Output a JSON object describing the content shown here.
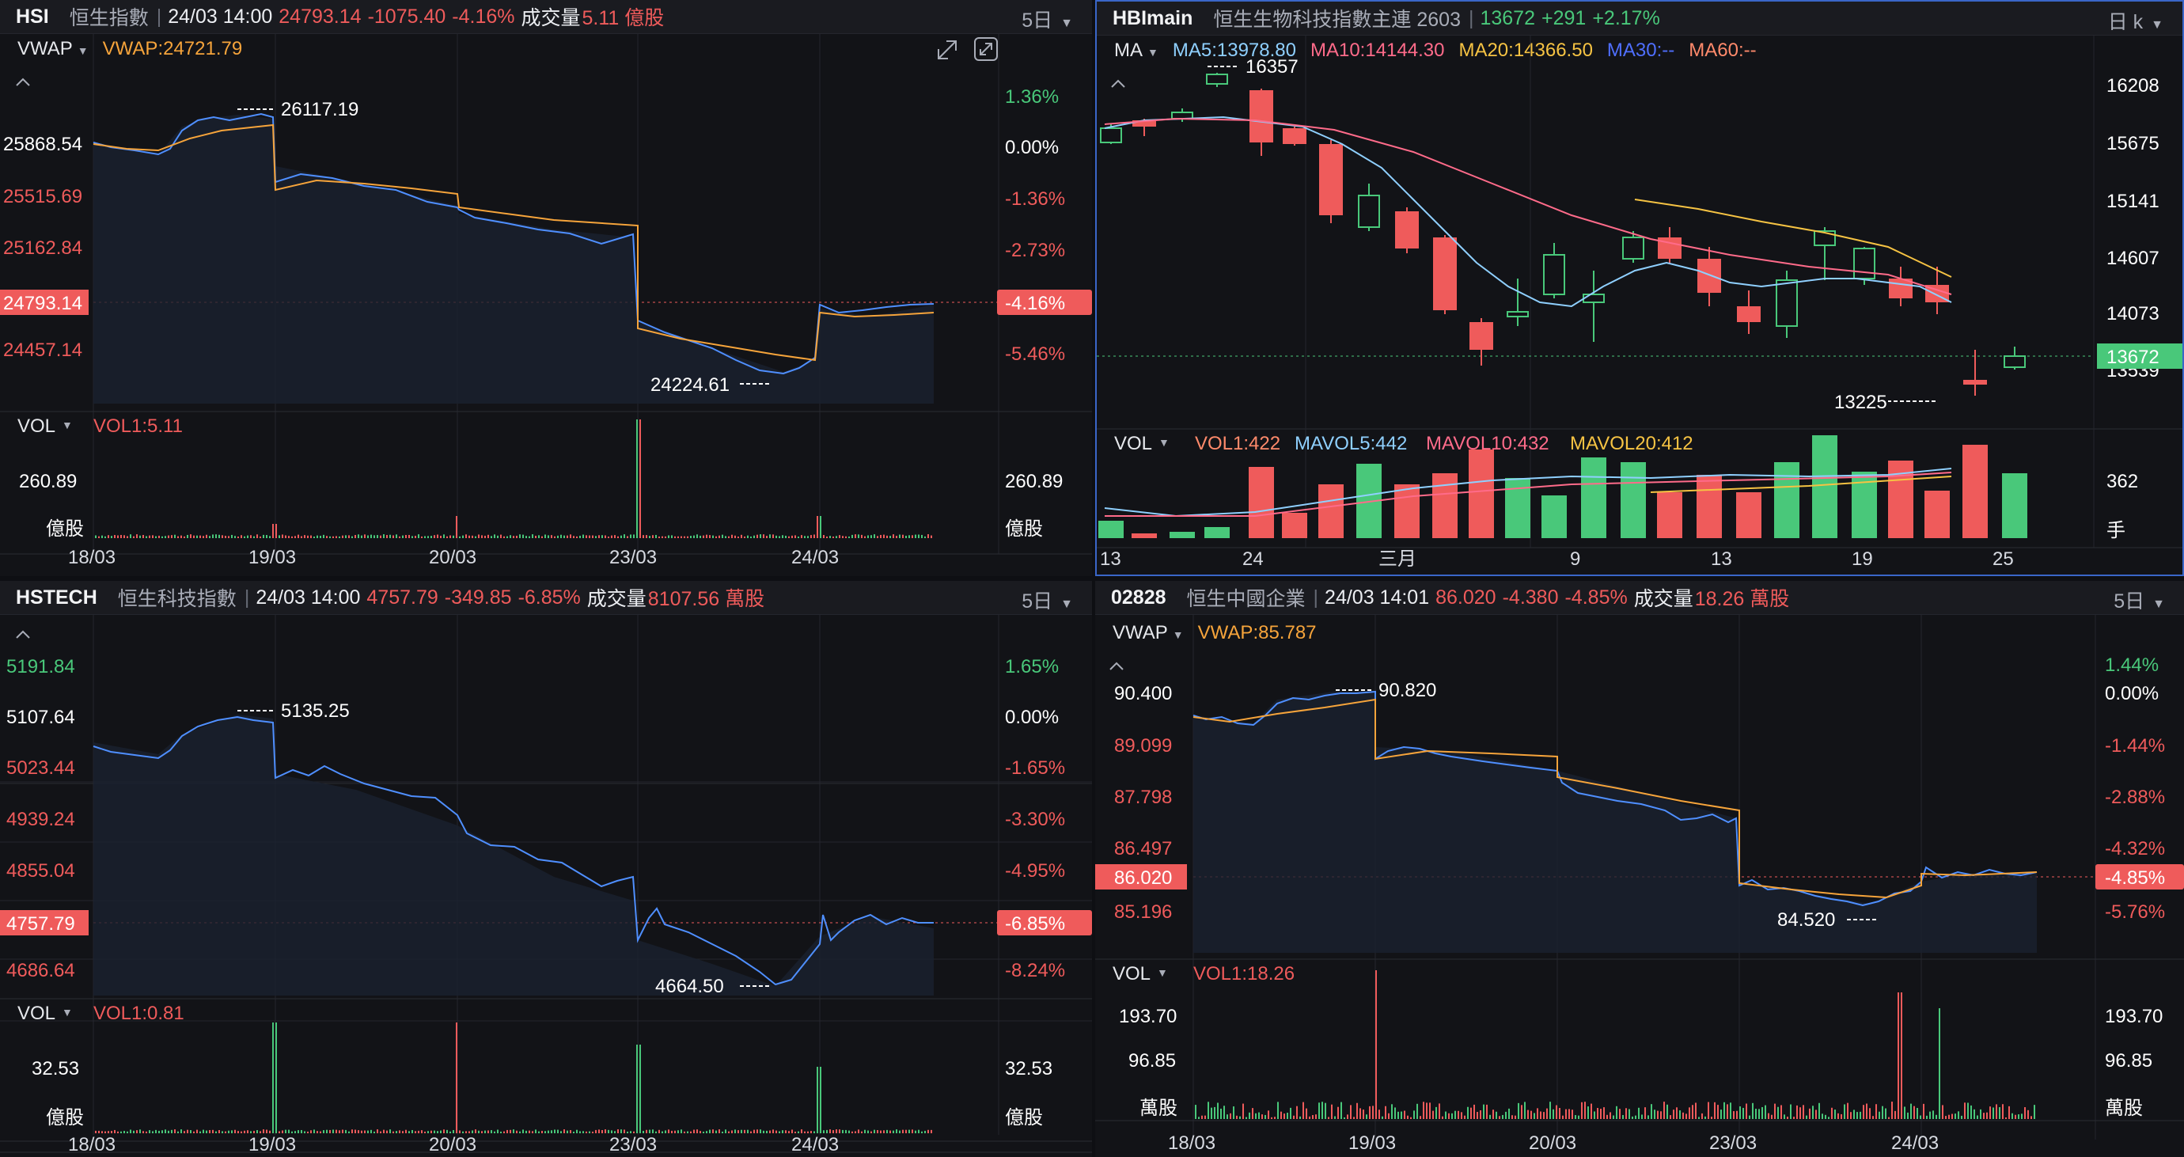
{
  "colors": {
    "up": "#49c87a",
    "down": "#ef5b5b",
    "vwap": "#f6a43b",
    "line": "#4f8fff",
    "bg": "#121317"
  },
  "panels": {
    "hsi": {
      "code": "HSI",
      "name": "恒生指數",
      "datetime": "24/03 14:00",
      "last": "24793.14",
      "change": "-1075.40",
      "pct": "-4.16%",
      "vol_label": "成交量",
      "vol_value": "5.11 億股",
      "period": "5日",
      "indicator": "VWAP",
      "indicator_value": "VWAP:24721.79",
      "high_label": "26117.19",
      "low_label": "24224.61",
      "left_axis": [
        "25868.54",
        "25515.69",
        "25162.84",
        "24793.14",
        "24457.14"
      ],
      "right_axis": [
        "1.36%",
        "0.00%",
        "-1.36%",
        "-2.73%",
        "-4.16%",
        "-5.46%"
      ],
      "vol_title": "VOL",
      "vol_ind": "VOL1:5.11",
      "vol_axis": "260.89",
      "vol_unit": "億股",
      "dates": [
        "18/03",
        "19/03",
        "20/03",
        "23/03",
        "24/03"
      ]
    },
    "hb": {
      "code": "HBImain",
      "name": "恒生生物科技指數主連 2603",
      "last": "13672",
      "change": "+291",
      "pct": "+2.17%",
      "period": "日 k",
      "indicator": "MA",
      "ma": [
        "MA5:13978.80",
        "MA10:14144.30",
        "MA20:14366.50",
        "MA30:--",
        "MA60:--"
      ],
      "high_label": "16357",
      "low_label": "13225",
      "right_axis": [
        "16208",
        "15675",
        "15141",
        "14607",
        "14073",
        "13539",
        "13672"
      ],
      "vol_title": "VOL",
      "vol_ind": [
        "VOL1:422",
        "MAVOL5:442",
        "MAVOL10:432",
        "MAVOL20:412"
      ],
      "vol_axis": "362",
      "vol_unit": "手",
      "dates": [
        "13",
        "24",
        "三月",
        "9",
        "13",
        "19",
        "25"
      ]
    },
    "hstech": {
      "code": "HSTECH",
      "name": "恒生科技指數",
      "datetime": "24/03 14:00",
      "last": "4757.79",
      "change": "-349.85",
      "pct": "-6.85%",
      "vol_label": "成交量",
      "vol_value": "8107.56 萬股",
      "period": "5日",
      "high_label": "5135.25",
      "low_label": "4664.50",
      "left_axis": [
        "5191.84",
        "5107.64",
        "5023.44",
        "4939.24",
        "4855.04",
        "4757.79",
        "4686.64"
      ],
      "right_axis": [
        "1.65%",
        "0.00%",
        "-1.65%",
        "-3.30%",
        "-4.95%",
        "-6.85%",
        "-8.24%"
      ],
      "vol_title": "VOL",
      "vol_ind": "VOL1:0.81",
      "vol_axis": "32.53",
      "vol_unit": "億股",
      "dates": [
        "18/03",
        "19/03",
        "20/03",
        "23/03",
        "24/03"
      ]
    },
    "hscei": {
      "code": "02828",
      "name": "恒生中國企業",
      "datetime": "24/03 14:01",
      "last": "86.020",
      "change": "-4.380",
      "pct": "-4.85%",
      "vol_label": "成交量",
      "vol_value": "18.26 萬股",
      "period": "5日",
      "indicator": "VWAP",
      "indicator_value": "VWAP:85.787",
      "high_label": "90.820",
      "low_label": "84.520",
      "left_axis": [
        "90.400",
        "89.099",
        "87.798",
        "86.497",
        "86.020",
        "85.196"
      ],
      "right_axis": [
        "1.44%",
        "0.00%",
        "-1.44%",
        "-2.88%",
        "-4.32%",
        "-4.85%",
        "-5.76%"
      ],
      "vol_title": "VOL",
      "vol_ind": "VOL1:18.26",
      "vol_axis": [
        "193.70",
        "96.85"
      ],
      "vol_unit": "萬股",
      "dates": [
        "18/03",
        "19/03",
        "20/03",
        "23/03",
        "24/03"
      ]
    }
  }
}
